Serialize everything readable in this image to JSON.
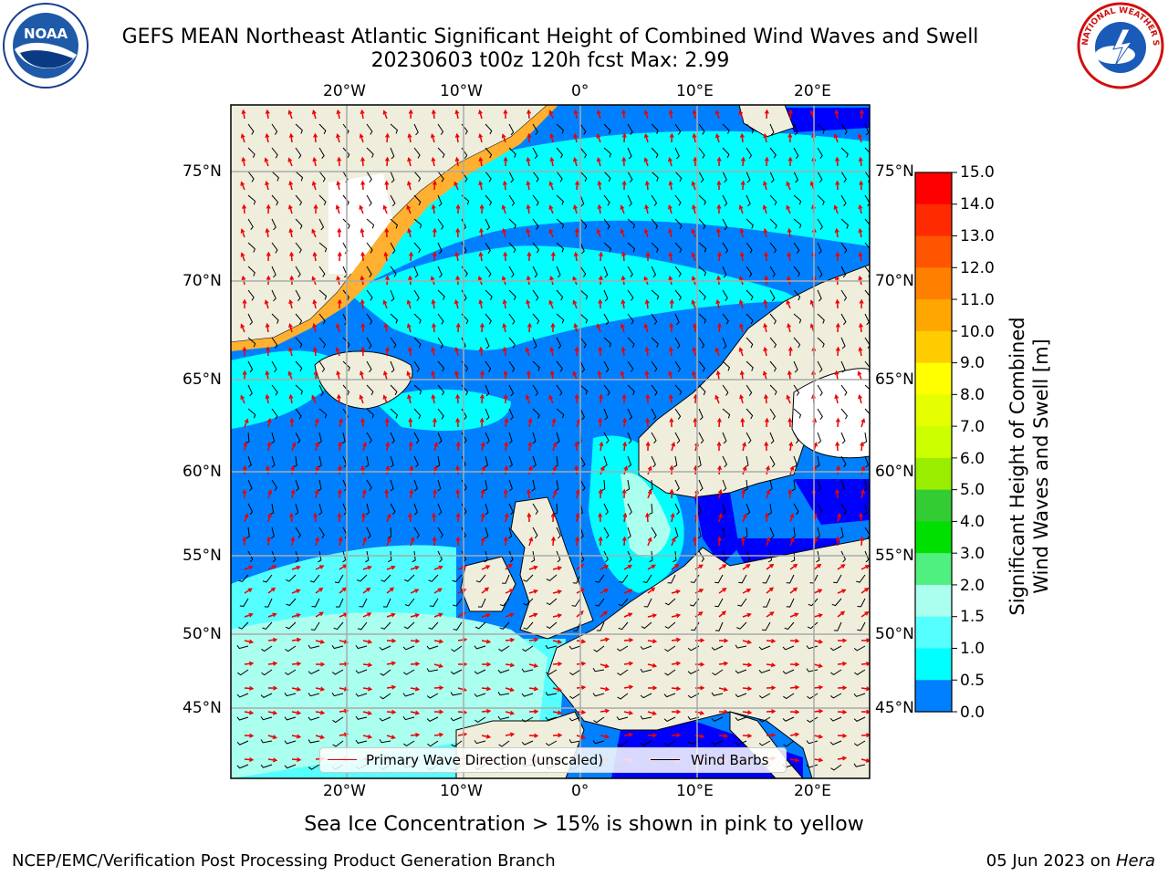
{
  "header": {
    "title_line1": "GEFS MEAN Northeast Atlantic Significant Height of Combined Wind Waves and Swell",
    "title_line2": "20230603 t00z 120h fcst   Max: 2.99"
  },
  "logos": {
    "left": {
      "icon": "noaa-logo",
      "text": "NOAA"
    },
    "right": {
      "icon": "nws-logo",
      "text": "NATIONAL WEATHER SERVICE"
    }
  },
  "map": {
    "lon_labels": [
      "20°W",
      "10°W",
      "0°",
      "10°E",
      "20°E"
    ],
    "lat_labels": [
      "75°N",
      "70°N",
      "65°N",
      "60°N",
      "55°N",
      "50°N",
      "45°N"
    ],
    "colors": {
      "land": "#efeedc",
      "ice_free_white": "#ffffff",
      "grid": "#aaaaaa",
      "wave_arrow": "#ee0000",
      "wind_barb": "#000000"
    }
  },
  "legend": {
    "primary_wave": "Primary Wave Direction (unscaled)",
    "wind_barbs": "Wind Barbs"
  },
  "colorbar": {
    "label_line1": "Significant Height of Combined",
    "label_line2": "Wind Waves and Swell [m]",
    "ticks": [
      "15.0",
      "14.0",
      "13.0",
      "12.0",
      "11.0",
      "10.0",
      "9.0",
      "8.0",
      "7.0",
      "6.0",
      "5.0",
      "4.0",
      "3.0",
      "2.0",
      "1.5",
      "1.0",
      "0.5",
      "0.0"
    ],
    "bands": [
      "#ff0000",
      "#ff2a00",
      "#ff5500",
      "#ff7f00",
      "#ffa600",
      "#ffcc00",
      "#ffff00",
      "#e5ff00",
      "#ccff00",
      "#99ee00",
      "#33cc33",
      "#00e000",
      "#50f080",
      "#aaffee",
      "#55ffff",
      "#00ffff",
      "#0080ff",
      "#0000ff"
    ]
  },
  "footnote": "Sea Ice Concentration > 15% is shown in pink to yellow",
  "footer": {
    "left": "NCEP/EMC/Verification Post Processing Product Generation Branch",
    "right_date": "05 Jun 2023 on ",
    "right_host": "Hera"
  }
}
